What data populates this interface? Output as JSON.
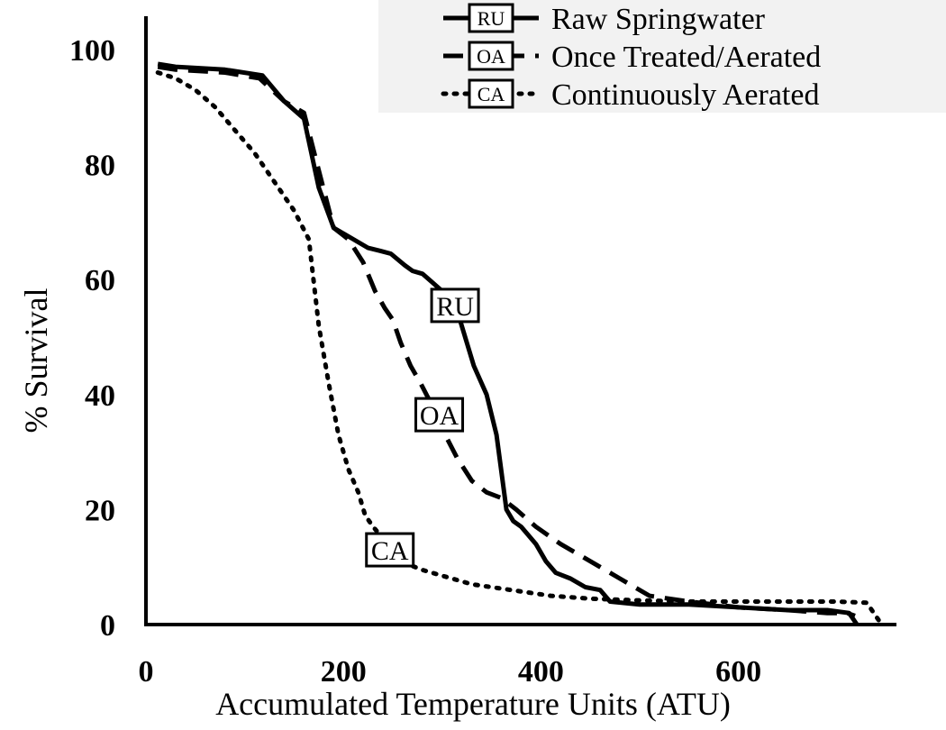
{
  "chart_data": {
    "type": "line",
    "xlabel": "Accumulated Temperature Units (ATU)",
    "ylabel": "% Survival",
    "xlim": [
      0,
      760
    ],
    "ylim": [
      0,
      105
    ],
    "xticks": [
      0,
      200,
      400,
      600
    ],
    "yticks": [
      0,
      20,
      40,
      60,
      80,
      100
    ],
    "legend_position": "top-right",
    "series": [
      {
        "name": "Raw Springwater",
        "tag": "RU",
        "style": "solid",
        "color": "#000000",
        "x": [
          12,
          30,
          80,
          118,
          140,
          160,
          175,
          190,
          210,
          225,
          237,
          248,
          262,
          270,
          280,
          290,
          300,
          318,
          332,
          345,
          355,
          365,
          372,
          380,
          395,
          405,
          415,
          430,
          445,
          460,
          470,
          500,
          550,
          600,
          650,
          690,
          712,
          720
        ],
        "y": [
          97.5,
          97,
          96.5,
          95.5,
          91,
          88,
          76,
          69,
          67,
          65.5,
          65,
          64.5,
          62.5,
          61.5,
          61,
          59.5,
          58,
          53,
          45,
          40,
          33,
          20,
          18,
          17,
          14,
          11,
          9,
          8,
          6.5,
          6,
          4,
          3.5,
          3.5,
          3,
          2.5,
          2.5,
          2,
          0
        ]
      },
      {
        "name": "Once Treated/Aerated",
        "tag": "OA",
        "style": "dashed",
        "color": "#000000",
        "x": [
          12,
          30,
          80,
          115,
          140,
          160,
          175,
          190,
          205,
          220,
          232,
          242,
          250,
          258,
          268,
          278,
          290,
          300,
          315,
          330,
          345,
          360,
          375,
          395,
          420,
          440,
          460,
          480,
          510,
          550,
          600,
          650,
          690,
          710,
          718
        ],
        "y": [
          97,
          96.5,
          96,
          95,
          91,
          89,
          79,
          69,
          67,
          63,
          58,
          55,
          53,
          49,
          45,
          42,
          38,
          34,
          29,
          25,
          23,
          22,
          20,
          17,
          14,
          12,
          10,
          8,
          5,
          4,
          3,
          2.5,
          2,
          2,
          1.5
        ]
      },
      {
        "name": "Continuously Aerated",
        "tag": "CA",
        "style": "dotted",
        "color": "#000000",
        "x": [
          12,
          30,
          50,
          70,
          90,
          110,
          130,
          150,
          165,
          175,
          185,
          195,
          205,
          215,
          222,
          230,
          240,
          250,
          265,
          280,
          300,
          330,
          370,
          410,
          450,
          500,
          550,
          600,
          650,
          700,
          730,
          745
        ],
        "y": [
          96,
          95,
          93,
          90,
          86,
          82,
          77,
          72,
          67,
          52,
          42,
          33,
          27,
          23,
          19,
          17,
          15,
          13,
          10.5,
          9.5,
          8.5,
          7,
          6,
          5,
          4.5,
          4.2,
          4,
          4,
          4,
          4,
          3.8,
          0
        ]
      }
    ],
    "annotations": [
      {
        "text": "RU",
        "x": 313,
        "y": 55.5
      },
      {
        "text": "OA",
        "x": 297,
        "y": 36.5
      },
      {
        "text": "CA",
        "x": 247,
        "y": 13
      }
    ]
  }
}
